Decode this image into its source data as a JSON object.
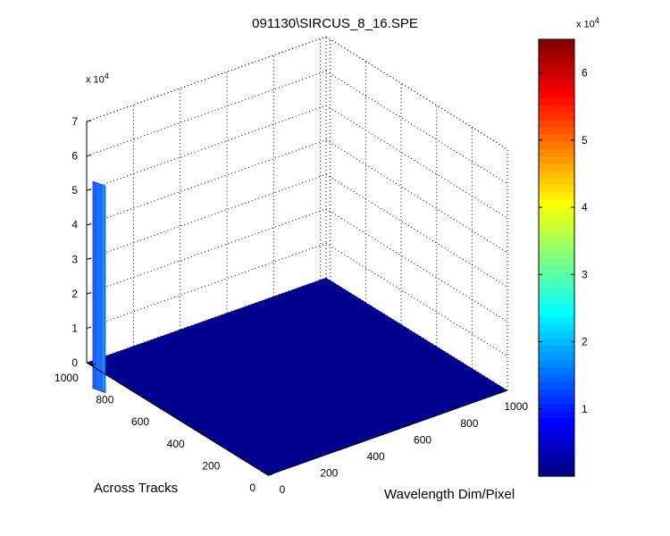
{
  "figure": {
    "title": "091130\\SIRCUS_8_16.SPE"
  },
  "chart_data": {
    "type": "surface",
    "title": "091130\\SIRCUS_8_16.SPE",
    "xlabel": "Wavelength Dim/Pixel",
    "ylabel": "Across Tracks",
    "zlabel": "",
    "x_ticks": [
      "0",
      "200",
      "400",
      "600",
      "800",
      "1000"
    ],
    "y_ticks": [
      "0",
      "200",
      "400",
      "600",
      "800",
      "1000"
    ],
    "z_ticks": [
      "0",
      "1",
      "2",
      "3",
      "4",
      "5",
      "6",
      "7"
    ],
    "z_exponent": "x 10",
    "z_exponent_power": "4",
    "xlim": [
      0,
      1024
    ],
    "ylim": [
      0,
      1024
    ],
    "zlim": [
      0,
      70000
    ],
    "grid": true,
    "colormap": "jet",
    "colorbar": {
      "ticks": [
        "1",
        "2",
        "3",
        "4",
        "5",
        "6"
      ],
      "range": [
        0,
        65000
      ],
      "exponent": "x 10",
      "exponent_power": "4"
    },
    "baseline_level": 0,
    "peak": {
      "x": 0,
      "y": 1000,
      "z": 53000
    }
  },
  "colors": {
    "baseline_surface": "#00008f",
    "peak_color": "#1e6cff",
    "grid": "#000000"
  }
}
